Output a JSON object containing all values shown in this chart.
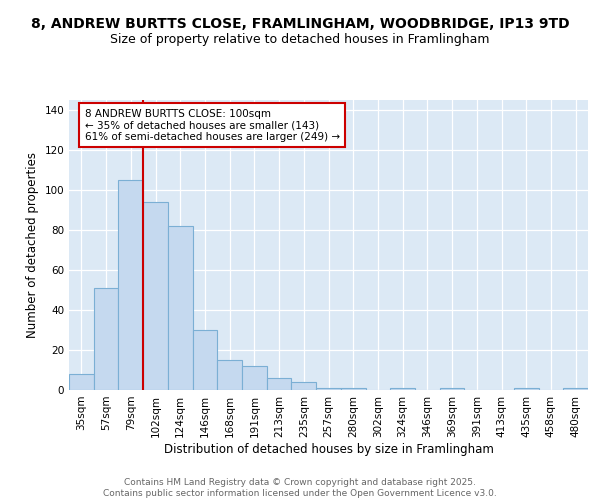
{
  "title": "8, ANDREW BURTTS CLOSE, FRAMLINGHAM, WOODBRIDGE, IP13 9TD",
  "subtitle": "Size of property relative to detached houses in Framlingham",
  "xlabel": "Distribution of detached houses by size in Framlingham",
  "ylabel": "Number of detached properties",
  "bar_values": [
    8,
    51,
    105,
    94,
    82,
    30,
    15,
    12,
    6,
    4,
    1,
    1,
    0,
    1,
    0,
    1,
    0,
    0,
    1,
    0,
    1
  ],
  "bar_labels": [
    "35sqm",
    "57sqm",
    "79sqm",
    "102sqm",
    "124sqm",
    "146sqm",
    "168sqm",
    "191sqm",
    "213sqm",
    "235sqm",
    "257sqm",
    "280sqm",
    "302sqm",
    "324sqm",
    "346sqm",
    "369sqm",
    "391sqm",
    "413sqm",
    "435sqm",
    "458sqm",
    "480sqm"
  ],
  "bar_color": "#c5d9ef",
  "bar_edge_color": "#7bafd4",
  "vline_color": "#cc0000",
  "annotation_text": "8 ANDREW BURTTS CLOSE: 100sqm\n← 35% of detached houses are smaller (143)\n61% of semi-detached houses are larger (249) →",
  "annotation_box_color": "#ffffff",
  "annotation_box_edge": "#cc0000",
  "ylim": [
    0,
    145
  ],
  "yticks": [
    0,
    20,
    40,
    60,
    80,
    100,
    120,
    140
  ],
  "footer_text": "Contains HM Land Registry data © Crown copyright and database right 2025.\nContains public sector information licensed under the Open Government Licence v3.0.",
  "plot_bg_color": "#dce9f5",
  "fig_bg_color": "#ffffff",
  "grid_color": "#ffffff",
  "title_fontsize": 10,
  "subtitle_fontsize": 9,
  "axis_label_fontsize": 8.5,
  "tick_fontsize": 7.5,
  "annotation_fontsize": 7.5,
  "footer_fontsize": 6.5
}
